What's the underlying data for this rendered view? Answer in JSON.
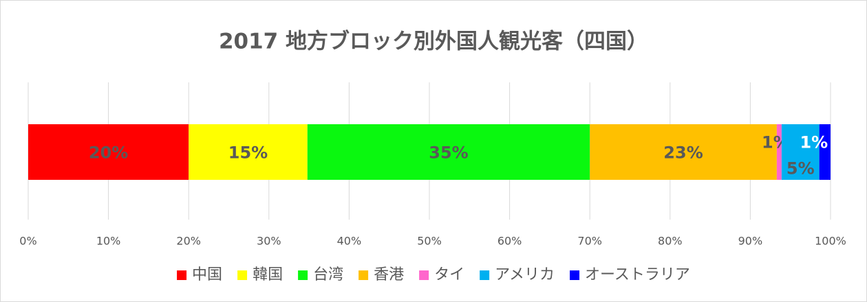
{
  "chart_data": {
    "type": "stacked_bar_horizontal",
    "title": "2017 地方ブロック別外国人観光客（四国）",
    "categories": [
      null
    ],
    "series": [
      {
        "name": "中国",
        "color": "#ff0000",
        "values": [
          20
        ],
        "value_labels": [
          "20%"
        ],
        "label_color": "#595959"
      },
      {
        "name": "韓国",
        "color": "#ffff00",
        "values": [
          14.8
        ],
        "value_labels": [
          "15%"
        ],
        "label_color": "#595959"
      },
      {
        "name": "台湾",
        "color": "#0af80f",
        "values": [
          35.2
        ],
        "value_labels": [
          "35%"
        ],
        "label_color": "#595959"
      },
      {
        "name": "香港",
        "color": "#ffc000",
        "values": [
          23.3
        ],
        "value_labels": [
          "23%"
        ],
        "label_color": "#595959"
      },
      {
        "name": "タイ",
        "color": "#ff66cc",
        "values": [
          0.6
        ],
        "value_labels": [
          "1%"
        ],
        "label_color": "#595959"
      },
      {
        "name": "アメリカ",
        "color": "#00b0f0",
        "values": [
          4.7
        ],
        "value_labels": [
          "5%"
        ],
        "label_color": "#595959"
      },
      {
        "name": "オーストラリア",
        "color": "#0000ff",
        "values": [
          1.4
        ],
        "value_labels": [
          "1%"
        ],
        "label_color": "#ffffff"
      }
    ],
    "xlim": [
      0,
      100
    ],
    "xticks": [
      {
        "value": 0,
        "label": "0%"
      },
      {
        "value": 10,
        "label": "10%"
      },
      {
        "value": 20,
        "label": "20%"
      },
      {
        "value": 30,
        "label": "30%"
      },
      {
        "value": 40,
        "label": "40%"
      },
      {
        "value": 50,
        "label": "50%"
      },
      {
        "value": 60,
        "label": "60%"
      },
      {
        "value": 70,
        "label": "70%"
      },
      {
        "value": 80,
        "label": "80%"
      },
      {
        "value": 90,
        "label": "90%"
      },
      {
        "value": 100,
        "label": "100%"
      }
    ],
    "grid": true,
    "legend": "bottom"
  }
}
